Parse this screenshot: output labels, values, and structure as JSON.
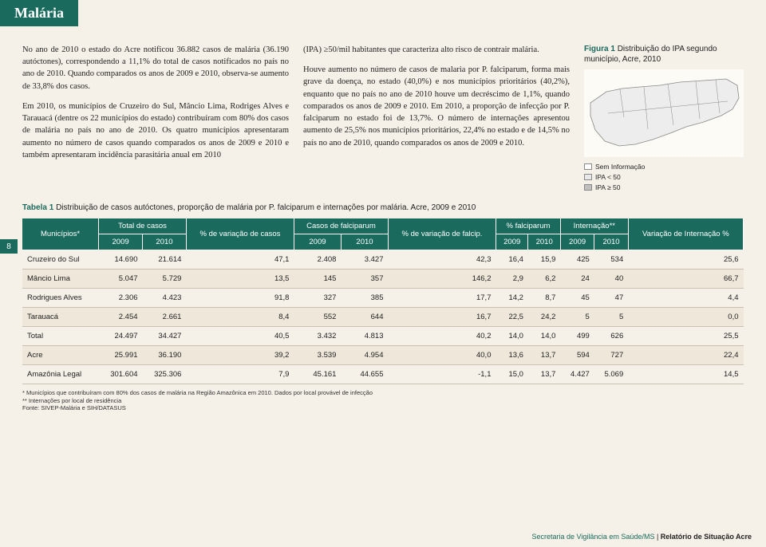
{
  "title": "Malária",
  "pageNumber": "8",
  "col1_p1": "No ano de 2010 o estado do Acre notificou 36.882 casos de malária (36.190 autóctones), correspondendo a 11,1% do total de casos notificados no país no ano de 2010. Quando comparados os anos de 2009 e 2010, observa-se aumento de 33,8% dos casos.",
  "col1_p2": "Em 2010, os municípios de Cruzeiro do Sul, Mâncio Lima, Rodriges Alves e Tarauacá (dentre os 22 municípios do estado) contribuíram com 80% dos casos de malária no país no ano de 2010. Os quatro municípios apresentaram aumento no número de casos quando comparados os anos de 2009 e 2010 e também apresentaram incidência parasitária anual em 2010",
  "col2_p1": "(IPA) ≥50/mil habitantes que caracteriza alto risco de contrair malária.",
  "col2_p2": "Houve aumento no número de casos de malaria por P. falciparum, forma mais grave da doença, no estado (40,0%) e nos municípios prioritários (40,2%), enquanto que no país no ano de 2010 houve um decréscimo de 1,1%, quando comparados os anos de 2009 e 2010. Em 2010, a proporção de infecção por P. falciparum no estado foi de 13,7%. O número de internações apresentou aumento de 25,5% nos municípios prioritários, 22,4% no estado e de 14,5% no país no ano de 2010, quando comparados os anos de 2009 e 2010.",
  "figure": {
    "label": "Figura 1",
    "title": "Distribuição do IPA segundo município, Acre, 2010",
    "legend": [
      {
        "label": "Sem Informação",
        "color": "#ffffff"
      },
      {
        "label": "IPA < 50",
        "color": "#e8e8e8"
      },
      {
        "label": "IPA ≥ 50",
        "color": "#c0c0c0"
      }
    ],
    "map_fill": "#ededed",
    "map_stroke": "#888888"
  },
  "table": {
    "label": "Tabela 1",
    "caption": "Distribuição de casos autóctones, proporção de malária por P. falciparum e internações por malária. Acre, 2009 e 2010",
    "headers": {
      "municipios": "Municípios*",
      "total": "Total de casos",
      "pct_casos": "% de variação de casos",
      "falcip": "Casos de falciparum",
      "pct_falcip": "% de variação de falcip.",
      "pct_falciparum": "% falciparum",
      "internacao": "Internação**",
      "var_intern": "Variação de Internação %",
      "y2009": "2009",
      "y2010": "2010"
    },
    "rows": [
      {
        "m": "Cruzeiro do Sul",
        "t09": "14.690",
        "t10": "21.614",
        "pvc": "47,1",
        "f09": "2.408",
        "f10": "3.427",
        "pvf": "42,3",
        "pf09": "16,4",
        "pf10": "15,9",
        "i09": "425",
        "i10": "534",
        "vi": "25,6"
      },
      {
        "m": "Mâncio Lima",
        "t09": "5.047",
        "t10": "5.729",
        "pvc": "13,5",
        "f09": "145",
        "f10": "357",
        "pvf": "146,2",
        "pf09": "2,9",
        "pf10": "6,2",
        "i09": "24",
        "i10": "40",
        "vi": "66,7"
      },
      {
        "m": "Rodrigues Alves",
        "t09": "2.306",
        "t10": "4.423",
        "pvc": "91,8",
        "f09": "327",
        "f10": "385",
        "pvf": "17,7",
        "pf09": "14,2",
        "pf10": "8,7",
        "i09": "45",
        "i10": "47",
        "vi": "4,4"
      },
      {
        "m": "Tarauacá",
        "t09": "2.454",
        "t10": "2.661",
        "pvc": "8,4",
        "f09": "552",
        "f10": "644",
        "pvf": "16,7",
        "pf09": "22,5",
        "pf10": "24,2",
        "i09": "5",
        "i10": "5",
        "vi": "0,0"
      },
      {
        "m": "Total",
        "t09": "24.497",
        "t10": "34.427",
        "pvc": "40,5",
        "f09": "3.432",
        "f10": "4.813",
        "pvf": "40,2",
        "pf09": "14,0",
        "pf10": "14,0",
        "i09": "499",
        "i10": "626",
        "vi": "25,5"
      },
      {
        "m": "Acre",
        "t09": "25.991",
        "t10": "36.190",
        "pvc": "39,2",
        "f09": "3.539",
        "f10": "4.954",
        "pvf": "40,0",
        "pf09": "13,6",
        "pf10": "13,7",
        "i09": "594",
        "i10": "727",
        "vi": "22,4"
      },
      {
        "m": "Amazônia Legal",
        "t09": "301.604",
        "t10": "325.306",
        "pvc": "7,9",
        "f09": "45.161",
        "f10": "44.655",
        "pvf": "-1,1",
        "pf09": "15,0",
        "pf10": "13,7",
        "i09": "4.427",
        "i10": "5.069",
        "vi": "14,5"
      }
    ]
  },
  "footnotes": {
    "n1": "* Municípios que contribuíram com 80% dos casos de malária na Região Amazônica em 2010. Dados por local provável de infecção",
    "n2": "** Internações por local de residência",
    "n3": "Fonte: SIVEP-Malária e SIH/DATASUS"
  },
  "footer": {
    "left": "Secretaria de Vigilância em Saúde/MS",
    "sep": " | ",
    "right": "Relatório de Situação Acre"
  }
}
